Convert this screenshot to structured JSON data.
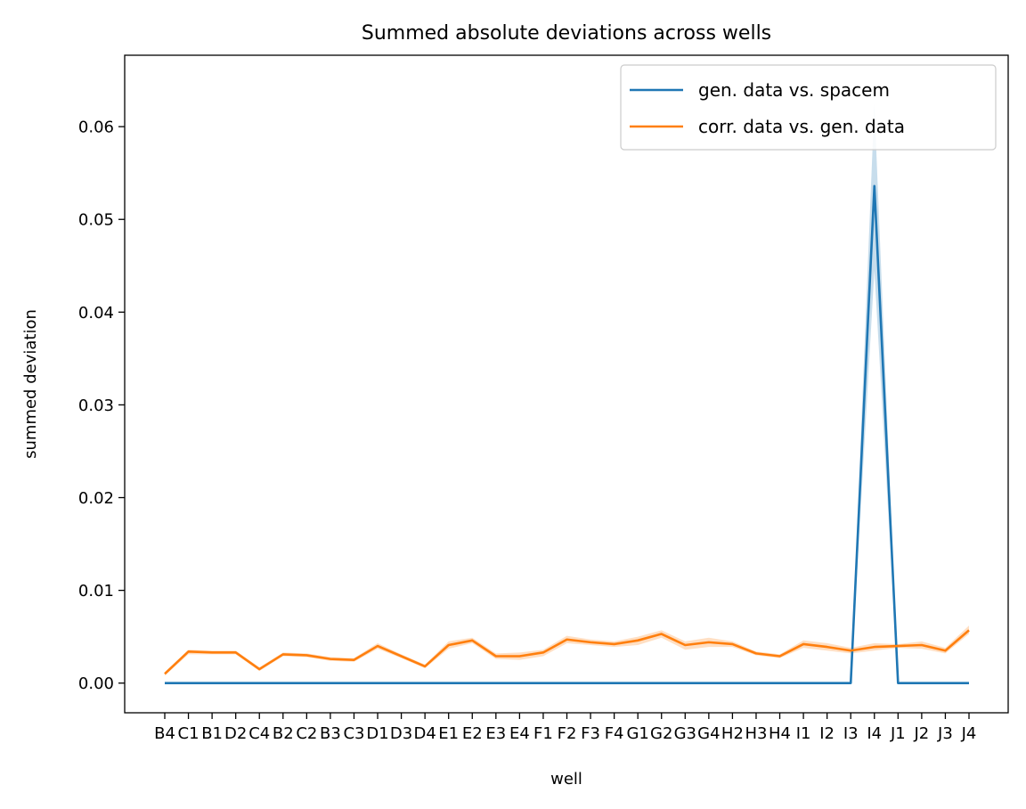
{
  "chart_data": {
    "type": "line",
    "title": "Summed absolute deviations across wells",
    "xlabel": "well",
    "ylabel": "summed deviation",
    "categories": [
      "B4",
      "C1",
      "B1",
      "D2",
      "C4",
      "B2",
      "C2",
      "B3",
      "C3",
      "D1",
      "D3",
      "D4",
      "E1",
      "E2",
      "E3",
      "E4",
      "F1",
      "F2",
      "F3",
      "F4",
      "G1",
      "G2",
      "G3",
      "G4",
      "H2",
      "H3",
      "H4",
      "I1",
      "I2",
      "I3",
      "I4",
      "J1",
      "J2",
      "J3",
      "J4"
    ],
    "ylim": [
      -0.0032,
      0.0677
    ],
    "yticks": [
      0.0,
      0.01,
      0.02,
      0.03,
      0.04,
      0.05,
      0.06
    ],
    "ytick_labels": [
      "0.00",
      "0.01",
      "0.02",
      "0.03",
      "0.04",
      "0.05",
      "0.06"
    ],
    "grid": false,
    "legend_position": "upper right",
    "series": [
      {
        "name": "gen. data vs. spacem",
        "color": "#1f77b4",
        "values": [
          0,
          0,
          0,
          0,
          0,
          0,
          0,
          0,
          0,
          0,
          0,
          0,
          0,
          0,
          0,
          0,
          0,
          0,
          0,
          0,
          0,
          0,
          0,
          0,
          0,
          0,
          0,
          0,
          0,
          0,
          0.0536,
          0,
          0,
          0,
          0
        ],
        "ci_low": [
          0,
          0,
          0,
          0,
          0,
          0,
          0,
          0,
          0,
          0,
          0,
          0,
          0,
          0,
          0,
          0,
          0,
          0,
          0,
          0,
          0,
          0,
          0,
          0,
          0,
          0,
          0,
          0,
          0,
          0,
          0.0445,
          0,
          0,
          0,
          0
        ],
        "ci_high": [
          0,
          0,
          0,
          0,
          0,
          0,
          0,
          0,
          0,
          0,
          0,
          0,
          0,
          0,
          0,
          0,
          0,
          0,
          0,
          0,
          0,
          0,
          0,
          0,
          0,
          0,
          0,
          0,
          0,
          0,
          0.0625,
          0,
          0,
          0,
          0
        ]
      },
      {
        "name": "corr. data vs. gen. data",
        "color": "#ff7f0e",
        "values": [
          0.001,
          0.0034,
          0.0033,
          0.0033,
          0.0015,
          0.0031,
          0.003,
          0.0026,
          0.0025,
          0.004,
          0.0029,
          0.0018,
          0.0041,
          0.0046,
          0.0029,
          0.0029,
          0.0033,
          0.0047,
          0.0044,
          0.0042,
          0.0046,
          0.0053,
          0.0041,
          0.0044,
          0.0042,
          0.0032,
          0.0029,
          0.0042,
          0.0039,
          0.0035,
          0.0039,
          0.004,
          0.0041,
          0.0035,
          0.0057
        ],
        "ci_low": [
          0.0008,
          0.0031,
          0.0031,
          0.0031,
          0.0013,
          0.0029,
          0.0028,
          0.0024,
          0.0023,
          0.0037,
          0.0027,
          0.0016,
          0.0037,
          0.0043,
          0.0026,
          0.0025,
          0.0029,
          0.0043,
          0.0041,
          0.0039,
          0.0041,
          0.0049,
          0.0036,
          0.0039,
          0.0039,
          0.003,
          0.0027,
          0.0038,
          0.0035,
          0.0032,
          0.0035,
          0.0038,
          0.0037,
          0.0032,
          0.0053
        ],
        "ci_high": [
          0.0012,
          0.0036,
          0.0035,
          0.0035,
          0.0017,
          0.0033,
          0.0032,
          0.0028,
          0.0027,
          0.0043,
          0.0031,
          0.002,
          0.0045,
          0.0049,
          0.0032,
          0.0033,
          0.0036,
          0.0051,
          0.0047,
          0.0045,
          0.005,
          0.0057,
          0.0045,
          0.0049,
          0.0045,
          0.0034,
          0.0031,
          0.0046,
          0.0043,
          0.0038,
          0.0043,
          0.0042,
          0.0045,
          0.0038,
          0.0062
        ]
      }
    ]
  }
}
